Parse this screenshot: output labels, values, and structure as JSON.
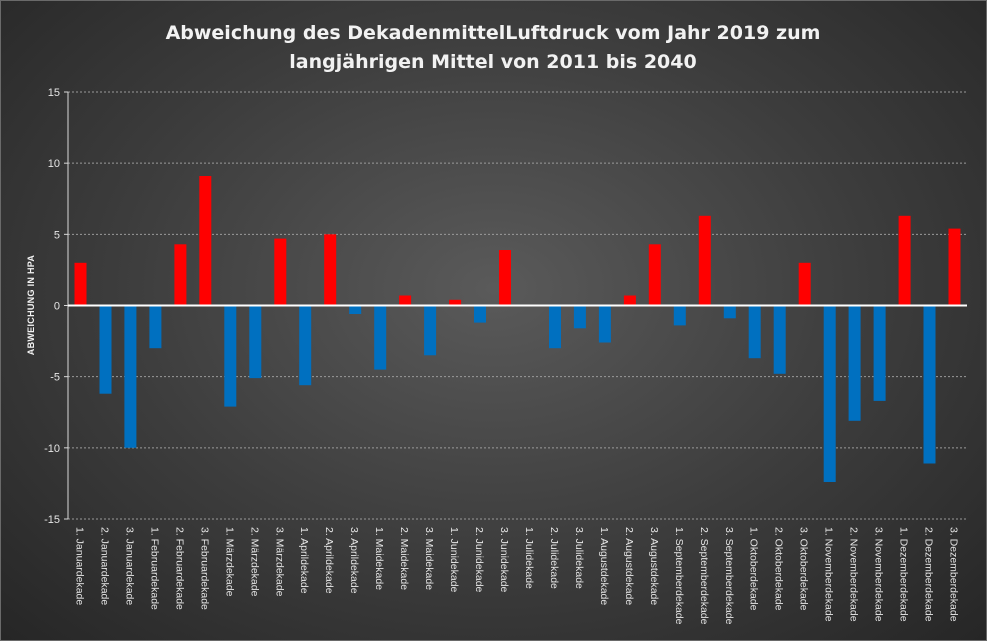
{
  "chart_data": {
    "type": "bar",
    "title": [
      "Abweichung des DekadenmittelLuftdruck  vom Jahr 2019 zum",
      "langjährigen Mittel von 2011 bis 2040"
    ],
    "xlabel": "",
    "ylabel": "ABWEICHUNG IN HPA",
    "ylim": [
      -15,
      15
    ],
    "yticks": [
      15,
      10,
      5,
      0,
      -5,
      -10,
      -15
    ],
    "grid": true,
    "legend": "none",
    "colors": {
      "positive": "#ff0000",
      "negative": "#0070c0"
    },
    "categories": [
      "1. Januardekade",
      "2. Januardekade",
      "3. Januardekade",
      "1. Februardekade",
      "2. Februardekade",
      "3. Februardekade",
      "1. Märzdekade",
      "2. Märzdekade",
      "3. Märzdekade",
      "1. Aprildekade",
      "2. Aprildekade",
      "3. Aprildekade",
      "1. Maidekade",
      "2. Maidekade",
      "3. Maidekade",
      "1. Junidekade",
      "2. Junidekade",
      "3. Junidekade",
      "1. Julidekade",
      "2. Julidekade",
      "3. Julidekade",
      "1. Augustdekade",
      "2. Augustdekade",
      "3. Augustdekade",
      "1. Septemberdekade",
      "2. Septemberdekade",
      "3. Septemberdekade",
      "1. Oktoberdekade",
      "2. Oktoberdekade",
      "3. Oktoberdekade",
      "1. Novemberdekade",
      "2. Novemberdekade",
      "3. Novemberdekade",
      "1. Dezemberdekade",
      "2. Dezemberdekade",
      "3. Dezemberdekade"
    ],
    "values": [
      3.0,
      -6.2,
      -10.0,
      -3.0,
      4.3,
      9.1,
      -7.1,
      -5.1,
      4.7,
      -5.6,
      5.0,
      -0.6,
      -4.5,
      0.7,
      -3.5,
      0.4,
      -1.2,
      3.9,
      0.0,
      -3.0,
      -1.6,
      -2.6,
      0.7,
      4.3,
      -1.4,
      6.3,
      -0.9,
      -3.7,
      -4.8,
      3.0,
      -12.4,
      -8.1,
      -6.7,
      6.3,
      -11.1,
      5.4
    ]
  }
}
